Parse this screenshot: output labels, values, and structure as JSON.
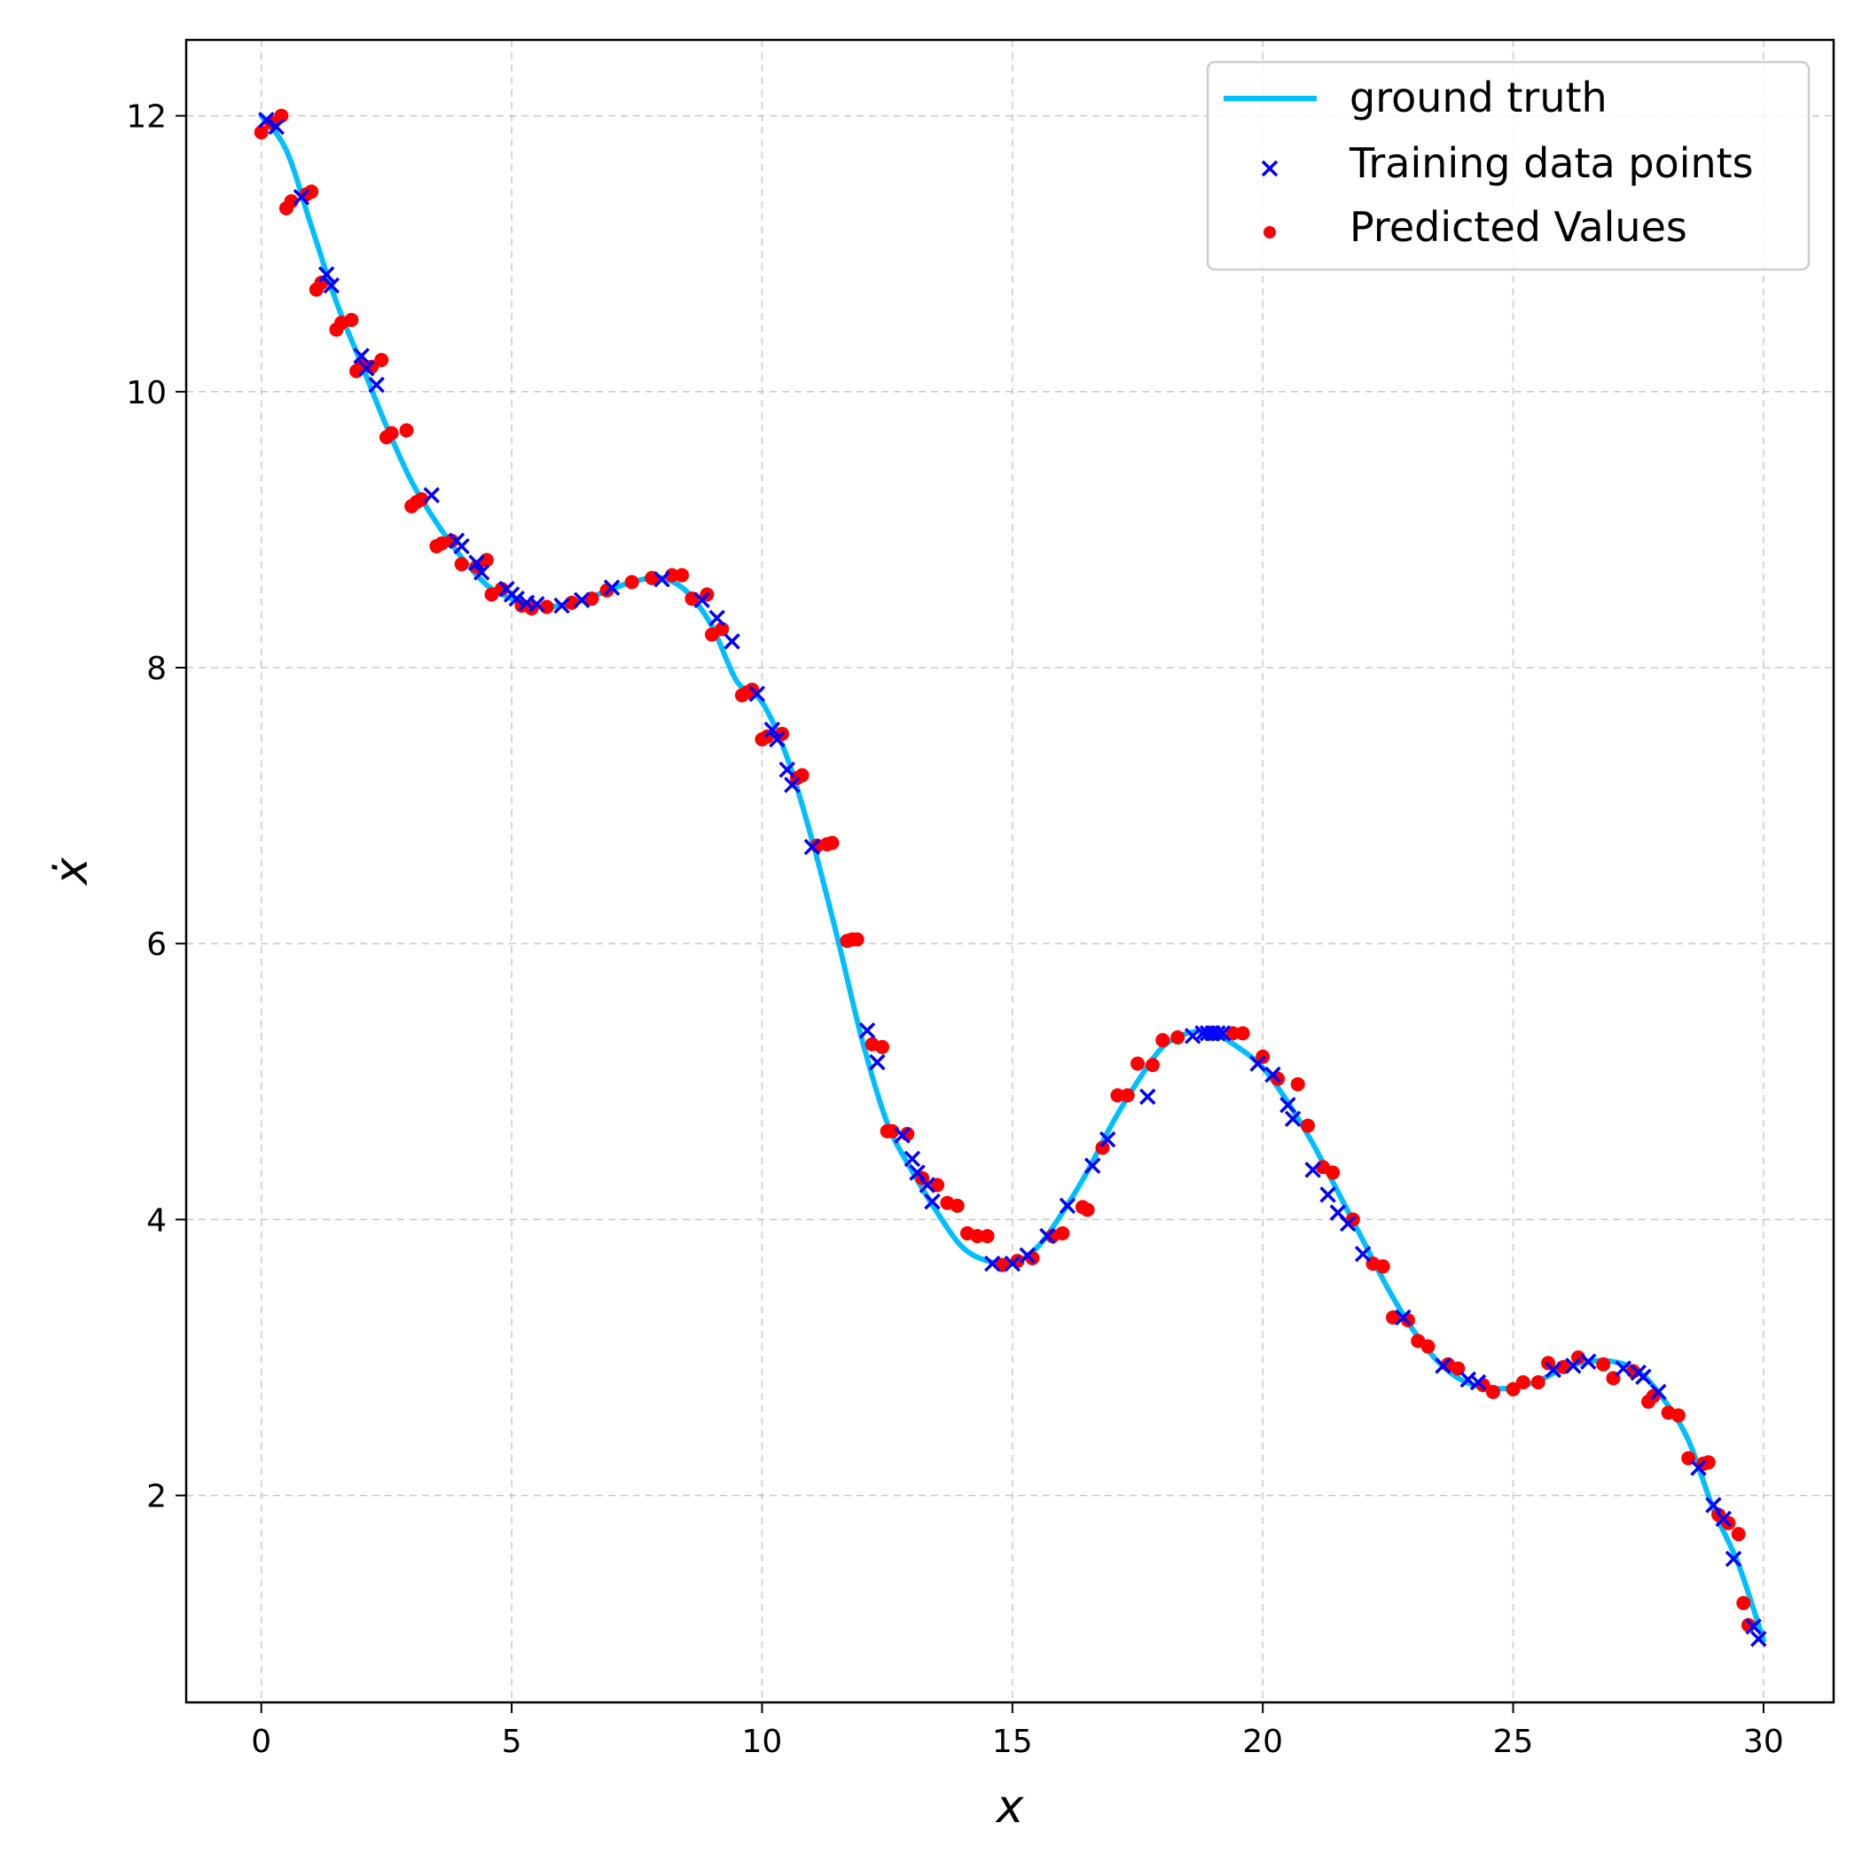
{
  "chart_data": {
    "type": "line",
    "title": "",
    "xlabel": "x",
    "ylabel": "ẋ",
    "xlim": [
      -1.5,
      31.4
    ],
    "ylim": [
      0.5,
      12.55
    ],
    "xticks": [
      0,
      5,
      10,
      15,
      20,
      25,
      30
    ],
    "yticks": [
      2,
      4,
      6,
      8,
      10,
      12
    ],
    "grid": true,
    "legend_position": "top-right",
    "series": [
      {
        "name": "ground truth",
        "kind": "line",
        "color": "#00bfff",
        "x": [
          0,
          0.5,
          1,
          1.5,
          2,
          2.5,
          3,
          3.5,
          4,
          4.5,
          5,
          5.5,
          6,
          6.5,
          7,
          7.5,
          8,
          8.5,
          9,
          9.5,
          10,
          10.5,
          11,
          11.5,
          12,
          12.5,
          13,
          13.5,
          14,
          14.5,
          15,
          15.5,
          16,
          16.5,
          17,
          17.5,
          18,
          18.5,
          19,
          19.5,
          20,
          20.5,
          21,
          21.5,
          22,
          22.5,
          23,
          23.5,
          24,
          24.5,
          25,
          25.5,
          26,
          26.5,
          27,
          27.5,
          28,
          28.5,
          29,
          29.5,
          30
        ],
        "y": [
          12.0,
          11.75,
          11.2,
          10.65,
          10.2,
          9.75,
          9.35,
          9.05,
          8.8,
          8.6,
          8.5,
          8.45,
          8.45,
          8.5,
          8.57,
          8.63,
          8.65,
          8.55,
          8.3,
          7.9,
          7.75,
          7.35,
          6.75,
          6.05,
          5.3,
          4.7,
          4.35,
          4.05,
          3.8,
          3.7,
          3.68,
          3.8,
          4.05,
          4.35,
          4.7,
          5.0,
          5.25,
          5.35,
          5.35,
          5.25,
          5.1,
          4.85,
          4.55,
          4.2,
          3.85,
          3.5,
          3.2,
          2.97,
          2.83,
          2.78,
          2.78,
          2.83,
          2.92,
          2.97,
          2.97,
          2.9,
          2.7,
          2.4,
          1.9,
          1.5,
          0.95
        ]
      },
      {
        "name": "Training data points",
        "kind": "scatter",
        "marker": "x",
        "color": "#0000ff",
        "x": [
          0.1,
          0.3,
          0.8,
          1.3,
          1.4,
          2.0,
          2.1,
          2.3,
          3.4,
          3.9,
          4.0,
          4.3,
          4.4,
          4.9,
          5.0,
          5.1,
          5.3,
          5.5,
          6.0,
          6.4,
          7.0,
          8.0,
          8.8,
          9.1,
          9.4,
          9.9,
          10.2,
          10.3,
          10.5,
          10.6,
          11.0,
          12.1,
          12.3,
          12.8,
          13.0,
          13.1,
          13.3,
          13.4,
          14.6,
          15.0,
          15.3,
          15.7,
          16.1,
          16.6,
          16.9,
          17.7,
          18.6,
          18.8,
          18.9,
          19.0,
          19.1,
          19.2,
          19.9,
          20.2,
          20.5,
          20.6,
          21.0,
          21.3,
          21.5,
          21.7,
          22.0,
          22.8,
          23.6,
          24.1,
          24.3,
          25.8,
          26.2,
          26.5,
          27.2,
          27.5,
          27.6,
          27.9,
          28.7,
          29.0,
          29.2,
          29.4,
          29.8,
          29.9
        ],
        "y": [
          11.97,
          11.92,
          11.41,
          10.85,
          10.77,
          10.26,
          10.17,
          10.05,
          9.25,
          8.92,
          8.88,
          8.76,
          8.69,
          8.57,
          8.53,
          8.5,
          8.47,
          8.46,
          8.45,
          8.49,
          8.58,
          8.64,
          8.49,
          8.36,
          8.19,
          7.81,
          7.55,
          7.48,
          7.26,
          7.15,
          6.7,
          5.37,
          5.14,
          4.61,
          4.44,
          4.34,
          4.25,
          4.13,
          3.68,
          3.68,
          3.74,
          3.88,
          4.1,
          4.39,
          4.58,
          4.89,
          5.33,
          5.35,
          5.35,
          5.35,
          5.35,
          5.35,
          5.13,
          5.05,
          4.83,
          4.73,
          4.36,
          4.18,
          4.05,
          3.97,
          3.75,
          3.29,
          2.94,
          2.84,
          2.82,
          2.91,
          2.94,
          2.97,
          2.92,
          2.89,
          2.86,
          2.75,
          2.2,
          1.93,
          1.83,
          1.54,
          1.05,
          0.96
        ]
      },
      {
        "name": "Predicted Values",
        "kind": "scatter",
        "marker": "o",
        "color": "#ff0000",
        "x": [
          0.0,
          0.2,
          0.4,
          0.5,
          0.6,
          0.9,
          1.0,
          1.1,
          1.2,
          1.5,
          1.6,
          1.8,
          1.9,
          2.0,
          2.2,
          2.4,
          2.5,
          2.6,
          2.9,
          3.0,
          3.1,
          3.2,
          3.5,
          3.6,
          3.8,
          4.0,
          4.3,
          4.5,
          4.6,
          4.8,
          5.2,
          5.4,
          5.7,
          6.2,
          6.6,
          6.9,
          7.4,
          7.8,
          8.2,
          8.4,
          8.6,
          8.9,
          9.0,
          9.2,
          9.6,
          9.7,
          9.8,
          10.0,
          10.1,
          10.4,
          10.7,
          10.8,
          11.1,
          11.3,
          11.4,
          11.7,
          11.8,
          11.9,
          12.2,
          12.4,
          12.5,
          12.6,
          12.9,
          13.2,
          13.5,
          13.7,
          13.9,
          14.1,
          14.3,
          14.5,
          14.8,
          15.1,
          15.4,
          15.8,
          16.0,
          16.4,
          16.5,
          16.8,
          17.1,
          17.3,
          17.5,
          17.8,
          18.0,
          18.3,
          19.4,
          19.6,
          20.0,
          20.3,
          20.7,
          20.9,
          21.2,
          21.4,
          21.8,
          22.2,
          22.4,
          22.6,
          22.9,
          23.1,
          23.3,
          23.7,
          23.9,
          24.4,
          24.6,
          25.0,
          25.2,
          25.5,
          25.7,
          26.0,
          26.3,
          26.8,
          27.0,
          27.4,
          27.7,
          27.8,
          28.1,
          28.3,
          28.5,
          28.8,
          28.9,
          29.1,
          29.3,
          29.5,
          29.6,
          29.7
        ],
        "y": [
          11.88,
          11.95,
          12.0,
          11.33,
          11.38,
          11.43,
          11.45,
          10.74,
          10.79,
          10.45,
          10.5,
          10.52,
          10.15,
          10.2,
          10.18,
          10.23,
          9.67,
          9.7,
          9.72,
          9.17,
          9.2,
          9.22,
          8.88,
          8.9,
          8.92,
          8.75,
          8.73,
          8.78,
          8.53,
          8.57,
          8.45,
          8.43,
          8.44,
          8.47,
          8.5,
          8.56,
          8.62,
          8.65,
          8.67,
          8.67,
          8.5,
          8.53,
          8.24,
          8.28,
          7.8,
          7.82,
          7.84,
          7.48,
          7.5,
          7.52,
          7.2,
          7.22,
          6.71,
          6.72,
          6.73,
          6.02,
          6.03,
          6.03,
          5.27,
          5.25,
          4.64,
          4.64,
          4.62,
          4.3,
          4.25,
          4.12,
          4.1,
          3.9,
          3.88,
          3.88,
          3.67,
          3.7,
          3.72,
          3.88,
          3.9,
          4.09,
          4.07,
          4.52,
          4.9,
          4.9,
          5.13,
          5.12,
          5.3,
          5.32,
          5.35,
          5.35,
          5.18,
          5.02,
          4.98,
          4.68,
          4.38,
          4.34,
          4.0,
          3.68,
          3.66,
          3.29,
          3.27,
          3.12,
          3.08,
          2.95,
          2.92,
          2.8,
          2.75,
          2.77,
          2.82,
          2.82,
          2.96,
          2.93,
          3.0,
          2.95,
          2.85,
          2.9,
          2.68,
          2.72,
          2.6,
          2.58,
          2.27,
          2.23,
          2.24,
          1.86,
          1.8,
          1.72,
          1.22,
          1.06
        ]
      }
    ]
  }
}
